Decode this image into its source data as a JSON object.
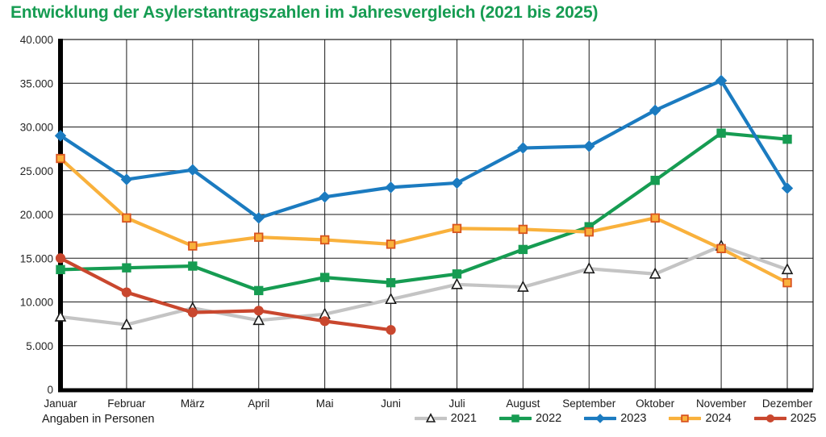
{
  "title": "Entwicklung der Asylerstantragszahlen im Jahresvergleich (2021 bis 2025)",
  "footnote": "Angaben in Personen",
  "colors": {
    "title": "#169C52",
    "grid": "#1a1a1a",
    "axis": "#000000"
  },
  "chart_data": {
    "type": "line",
    "title": "Entwicklung der Asylerstantragszahlen im Jahresvergleich (2021 bis 2025)",
    "xlabel": "",
    "ylabel": "Angaben in Personen",
    "ylim": [
      0,
      40000
    ],
    "ytick_step": 5000,
    "ytick_labels": [
      "0",
      "5.000",
      "10.000",
      "15.000",
      "20.000",
      "25.000",
      "30.000",
      "35.000",
      "40.000"
    ],
    "grid": true,
    "legend_position": "bottom-right",
    "categories": [
      "Januar",
      "Februar",
      "März",
      "April",
      "Mai",
      "Juni",
      "Juli",
      "August",
      "September",
      "Oktober",
      "November",
      "Dezember"
    ],
    "series": [
      {
        "name": "2021",
        "color": "#C4C4C4",
        "marker": "triangle",
        "marker_fill": "#FBFBF9",
        "marker_stroke": "#1a1a1a",
        "values": [
          8300,
          7400,
          9300,
          7900,
          8600,
          10300,
          12000,
          11700,
          13800,
          13200,
          16400,
          13700
        ]
      },
      {
        "name": "2022",
        "color": "#169C52",
        "marker": "square",
        "marker_fill": "#169C52",
        "marker_stroke": "#169C52",
        "values": [
          13700,
          13900,
          14100,
          11300,
          12800,
          12200,
          13200,
          16000,
          18600,
          23900,
          29300,
          28600
        ]
      },
      {
        "name": "2023",
        "color": "#1B7BC0",
        "marker": "diamond",
        "marker_fill": "#1B7BC0",
        "marker_stroke": "#1B7BC0",
        "values": [
          29000,
          24000,
          25100,
          19600,
          22000,
          23100,
          23600,
          27600,
          27800,
          31900,
          35300,
          23000
        ]
      },
      {
        "name": "2024",
        "color": "#F9B13C",
        "marker": "square",
        "marker_fill": "#F9B13C",
        "marker_stroke": "#D9531E",
        "values": [
          26400,
          19600,
          16400,
          17400,
          17100,
          16600,
          18400,
          18300,
          18000,
          19600,
          16100,
          12200
        ]
      },
      {
        "name": "2025",
        "color": "#C9472E",
        "marker": "circle",
        "marker_fill": "#C9472E",
        "marker_stroke": "#C9472E",
        "values": [
          15000,
          11100,
          8800,
          9000,
          7800,
          6800
        ]
      }
    ]
  }
}
